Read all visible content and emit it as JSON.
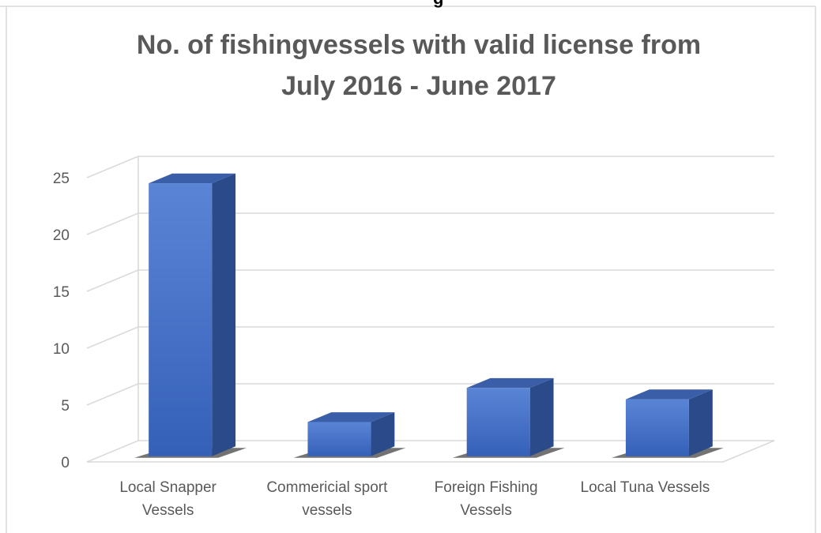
{
  "page": {
    "top_cut_text": "g"
  },
  "chart_data": {
    "type": "bar",
    "style": "3d-column",
    "title": "No. of fishingvessels with valid license from July 2016 - June 2017",
    "title_lines": [
      "No. of fishingvessels with valid license from",
      "July 2016 - June 2017"
    ],
    "categories": [
      "Local Snapper Vessels",
      "Commericial sport vessels",
      "Foreign Fishing Vessels",
      "Local Tuna Vessels"
    ],
    "category_label_lines": [
      [
        "Local Snapper",
        "Vessels"
      ],
      [
        "Commericial sport",
        "vessels"
      ],
      [
        "Foreign Fishing",
        "Vessels"
      ],
      [
        "Local Tuna Vessels"
      ]
    ],
    "values": [
      24,
      3,
      6,
      5
    ],
    "yticks": [
      0,
      5,
      10,
      15,
      20,
      25
    ],
    "ylim": [
      0,
      25
    ],
    "grid": true,
    "legend": "none",
    "colors": {
      "bar_front": "#4472c4",
      "bar_top": "#3a5ea8",
      "bar_side": "#2a4a8a",
      "gridline": "#d9d9d9",
      "text": "#595959"
    }
  }
}
